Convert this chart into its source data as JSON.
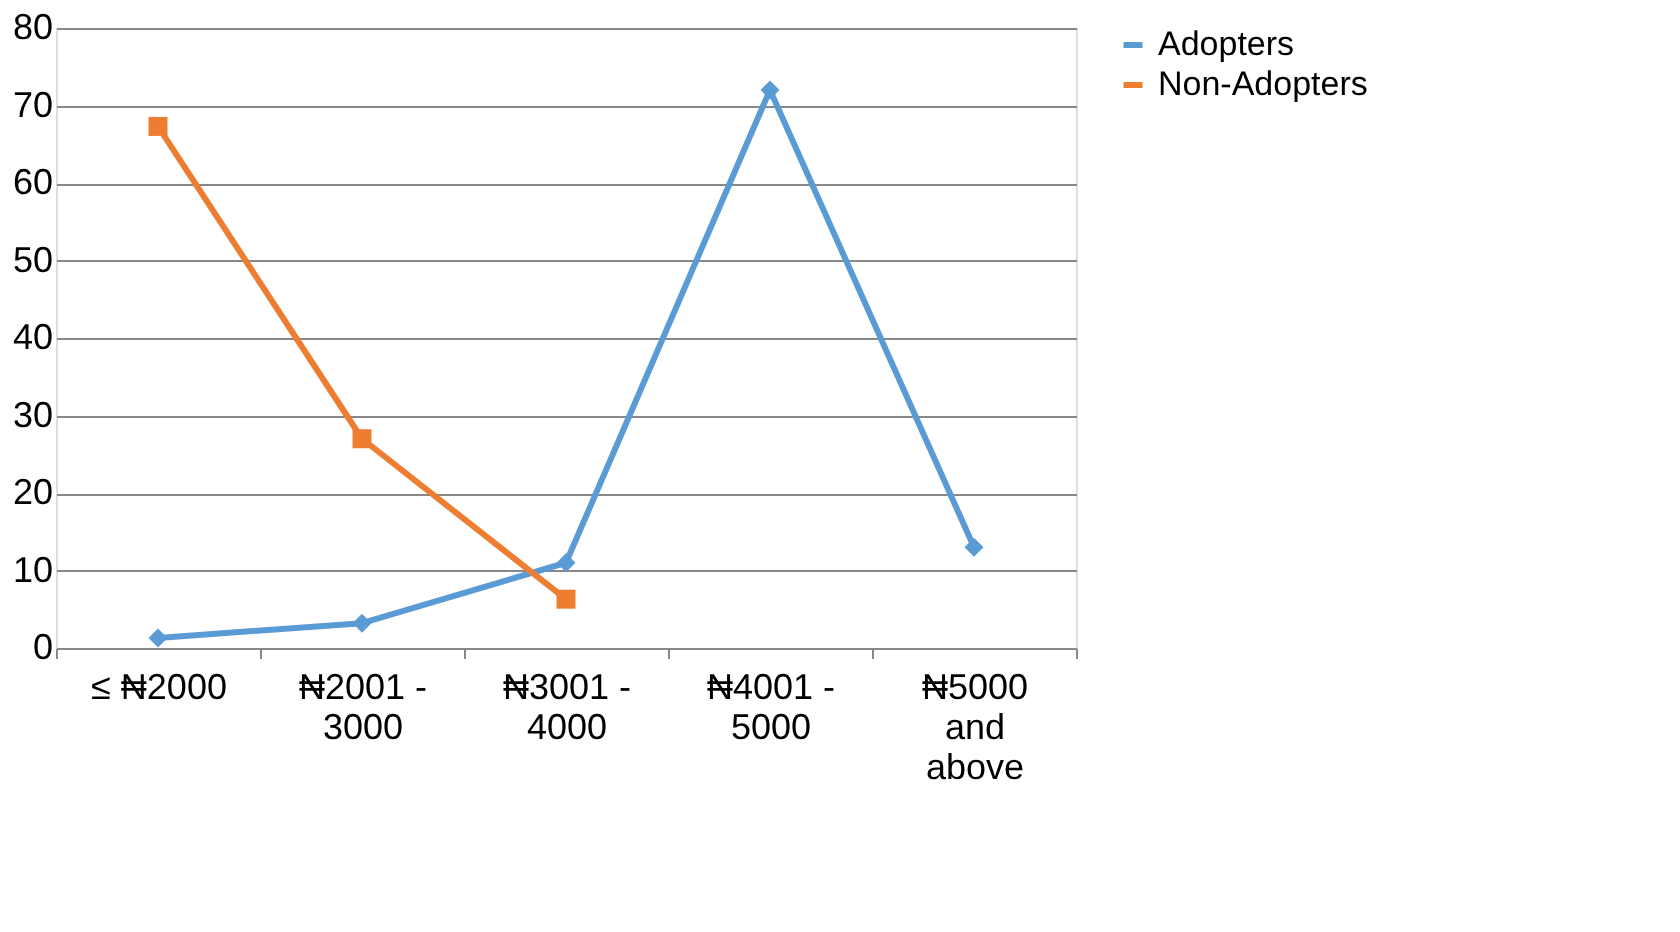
{
  "chart_data": {
    "type": "line",
    "categories": [
      "≤ ₦2000",
      "₦2001 - 3000",
      "₦3001 - 4000",
      "₦4001 - 5000",
      "₦5000 and above"
    ],
    "series": [
      {
        "name": "Adopters",
        "color": "#5b9bd5",
        "marker": "diamond",
        "values": [
          1.3,
          3.2,
          11,
          72,
          13
        ]
      },
      {
        "name": "Non-Adopters",
        "color": "#ed7d31",
        "marker": "square",
        "values": [
          67.3,
          27,
          6.3,
          null,
          null
        ]
      }
    ],
    "ylim": [
      0,
      80
    ],
    "yticks": [
      0,
      10,
      20,
      30,
      40,
      50,
      60,
      70,
      80
    ],
    "grid": "y",
    "legend": "right",
    "line_style": "solid"
  }
}
